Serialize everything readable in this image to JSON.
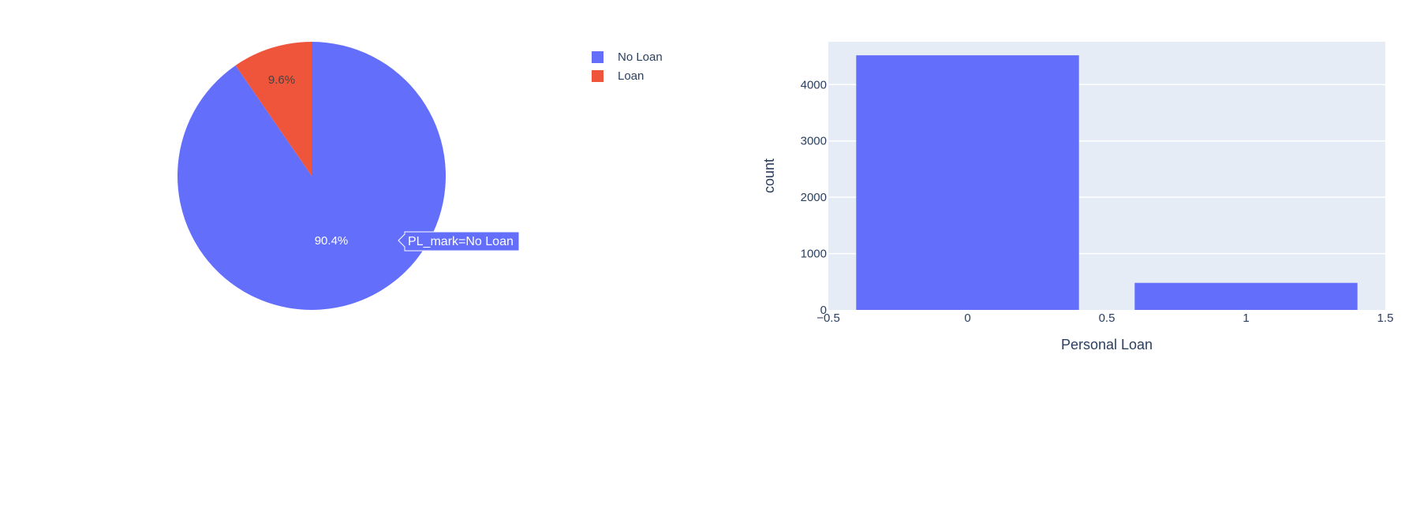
{
  "chart_data": [
    {
      "type": "pie",
      "labels": [
        "No Loan",
        "Loan"
      ],
      "values": [
        90.4,
        9.6
      ],
      "text_labels": [
        "90.4%",
        "9.6%"
      ],
      "colors": [
        "#636efa",
        "#ef553b"
      ],
      "legend": [
        "No Loan",
        "Loan"
      ],
      "legend_placement": "top-right",
      "hover_label": "PL_mark=No Loan"
    },
    {
      "type": "bar",
      "x": [
        0,
        1
      ],
      "values": [
        4520,
        480
      ],
      "color": "#636efa",
      "xlabel": "Personal Loan",
      "ylabel": "count",
      "xlim": [
        -0.5,
        1.5
      ],
      "ylim": [
        0,
        4760
      ],
      "x_ticks": [
        "−0.5",
        "0",
        "0.5",
        "1",
        "1.5"
      ],
      "x_tick_values": [
        -0.5,
        0,
        0.5,
        1,
        1.5
      ],
      "y_ticks": [
        "0",
        "1000",
        "2000",
        "3000",
        "4000"
      ],
      "y_tick_values": [
        0,
        1000,
        2000,
        3000,
        4000
      ],
      "grid": true,
      "plot_background": "#e5ecf6"
    }
  ]
}
